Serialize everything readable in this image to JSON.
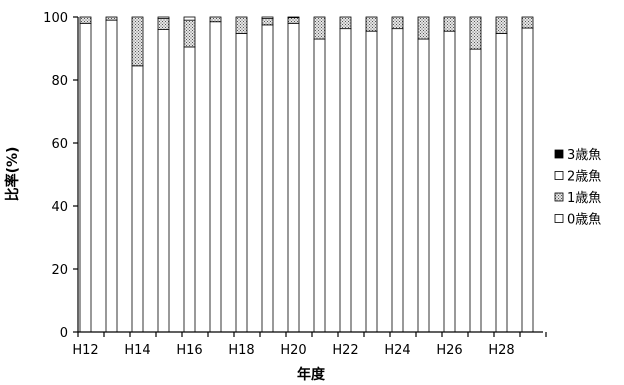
{
  "chart_data": {
    "type": "bar",
    "stacked": true,
    "orientation": "vertical",
    "title": "",
    "xlabel": "年度",
    "ylabel": "比率(%)",
    "ylim": [
      0,
      100
    ],
    "yticks": [
      0,
      20,
      40,
      60,
      80,
      100
    ],
    "grid": false,
    "legend_position": "right",
    "categories": [
      "H12",
      "H13",
      "H14",
      "H15",
      "H16",
      "H17",
      "H18",
      "H19",
      "H20",
      "H21",
      "H22",
      "H23",
      "H24",
      "H25",
      "H26",
      "H27",
      "H28",
      "H29"
    ],
    "x_tick_labels": [
      "H12",
      "",
      "H14",
      "",
      "H16",
      "",
      "H18",
      "",
      "H20",
      "",
      "H22",
      "",
      "H24",
      "",
      "H26",
      "",
      "H28",
      ""
    ],
    "series": [
      {
        "name": "0歳魚",
        "pattern": "white",
        "values": [
          98.0,
          99.0,
          84.5,
          96.0,
          90.5,
          98.5,
          94.8,
          97.5,
          98.0,
          93.0,
          96.3,
          95.5,
          96.3,
          93.0,
          95.5,
          89.8,
          94.8,
          96.5
        ]
      },
      {
        "name": "1歳魚",
        "pattern": "dotted",
        "values": [
          2.0,
          1.0,
          15.5,
          3.5,
          8.5,
          1.5,
          5.2,
          2.0,
          1.8,
          7.0,
          3.7,
          4.5,
          3.7,
          7.0,
          4.5,
          10.2,
          5.2,
          3.5
        ]
      },
      {
        "name": "2歳魚",
        "pattern": "white",
        "values": [
          0.0,
          0.0,
          0.0,
          0.5,
          1.0,
          0.0,
          0.0,
          0.5,
          0.2,
          0.0,
          0.0,
          0.0,
          0.0,
          0.0,
          0.0,
          0.0,
          0.0,
          0.0
        ]
      },
      {
        "name": "3歳魚",
        "pattern": "black",
        "values": [
          0.0,
          0.0,
          0.0,
          0.0,
          0.0,
          0.0,
          0.0,
          0.0,
          0.0,
          0.0,
          0.0,
          0.0,
          0.0,
          0.0,
          0.0,
          0.0,
          0.0,
          0.0
        ]
      }
    ],
    "legend_order": [
      "3歳魚",
      "2歳魚",
      "1歳魚",
      "0歳魚"
    ]
  }
}
